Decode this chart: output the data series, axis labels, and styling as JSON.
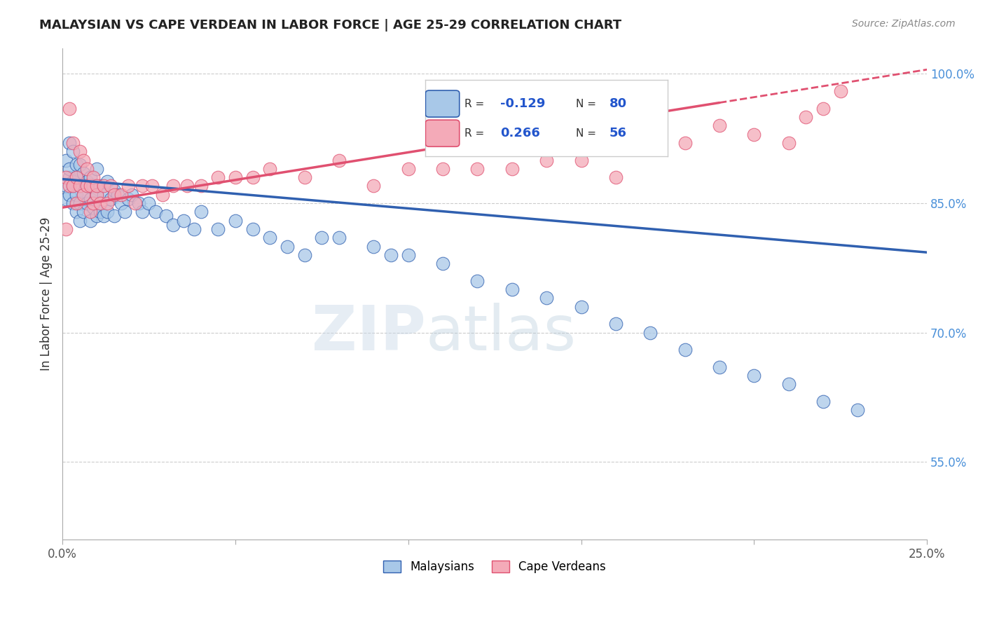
{
  "title": "MALAYSIAN VS CAPE VERDEAN IN LABOR FORCE | AGE 25-29 CORRELATION CHART",
  "source": "Source: ZipAtlas.com",
  "ylabel": "In Labor Force | Age 25-29",
  "xlim": [
    0.0,
    0.25
  ],
  "ylim": [
    0.46,
    1.03
  ],
  "ytick_positions": [
    0.55,
    0.7,
    0.85,
    1.0
  ],
  "ytick_labels": [
    "55.0%",
    "70.0%",
    "85.0%",
    "100.0%"
  ],
  "blue_color": "#a8c8e8",
  "pink_color": "#f4aab8",
  "blue_line_color": "#3060b0",
  "pink_line_color": "#e05070",
  "blue_R": -0.129,
  "blue_N": 80,
  "pink_R": 0.266,
  "pink_N": 56,
  "watermark_zip": "ZIP",
  "watermark_atlas": "atlas",
  "legend_label_blue": "Malaysians",
  "legend_label_pink": "Cape Verdeans",
  "blue_scatter_x": [
    0.001,
    0.001,
    0.001,
    0.002,
    0.002,
    0.002,
    0.002,
    0.003,
    0.003,
    0.003,
    0.003,
    0.004,
    0.004,
    0.004,
    0.004,
    0.005,
    0.005,
    0.005,
    0.005,
    0.006,
    0.006,
    0.006,
    0.007,
    0.007,
    0.007,
    0.008,
    0.008,
    0.008,
    0.009,
    0.009,
    0.01,
    0.01,
    0.01,
    0.011,
    0.011,
    0.012,
    0.012,
    0.013,
    0.013,
    0.014,
    0.015,
    0.015,
    0.016,
    0.017,
    0.018,
    0.019,
    0.02,
    0.022,
    0.023,
    0.025,
    0.027,
    0.03,
    0.032,
    0.035,
    0.038,
    0.04,
    0.045,
    0.05,
    0.055,
    0.06,
    0.065,
    0.07,
    0.075,
    0.08,
    0.09,
    0.095,
    0.1,
    0.11,
    0.12,
    0.13,
    0.14,
    0.15,
    0.16,
    0.17,
    0.18,
    0.19,
    0.2,
    0.21,
    0.22,
    0.23
  ],
  "blue_scatter_y": [
    0.87,
    0.9,
    0.855,
    0.88,
    0.92,
    0.86,
    0.89,
    0.91,
    0.875,
    0.85,
    0.87,
    0.895,
    0.86,
    0.84,
    0.88,
    0.895,
    0.87,
    0.85,
    0.83,
    0.885,
    0.86,
    0.84,
    0.875,
    0.85,
    0.87,
    0.88,
    0.855,
    0.83,
    0.87,
    0.845,
    0.89,
    0.86,
    0.835,
    0.87,
    0.84,
    0.86,
    0.835,
    0.875,
    0.84,
    0.855,
    0.865,
    0.835,
    0.86,
    0.85,
    0.84,
    0.855,
    0.86,
    0.85,
    0.84,
    0.85,
    0.84,
    0.835,
    0.825,
    0.83,
    0.82,
    0.84,
    0.82,
    0.83,
    0.82,
    0.81,
    0.8,
    0.79,
    0.81,
    0.81,
    0.8,
    0.79,
    0.79,
    0.78,
    0.76,
    0.75,
    0.74,
    0.73,
    0.71,
    0.7,
    0.68,
    0.66,
    0.65,
    0.64,
    0.62,
    0.61
  ],
  "pink_scatter_x": [
    0.001,
    0.001,
    0.002,
    0.002,
    0.003,
    0.003,
    0.004,
    0.004,
    0.005,
    0.005,
    0.006,
    0.006,
    0.007,
    0.007,
    0.008,
    0.008,
    0.009,
    0.009,
    0.01,
    0.01,
    0.011,
    0.012,
    0.013,
    0.014,
    0.015,
    0.017,
    0.019,
    0.021,
    0.023,
    0.026,
    0.029,
    0.032,
    0.036,
    0.04,
    0.045,
    0.05,
    0.055,
    0.06,
    0.07,
    0.08,
    0.09,
    0.1,
    0.11,
    0.12,
    0.13,
    0.14,
    0.15,
    0.16,
    0.17,
    0.18,
    0.19,
    0.2,
    0.21,
    0.215,
    0.22,
    0.225
  ],
  "pink_scatter_y": [
    0.82,
    0.88,
    0.96,
    0.87,
    0.87,
    0.92,
    0.88,
    0.85,
    0.91,
    0.87,
    0.86,
    0.9,
    0.87,
    0.89,
    0.87,
    0.84,
    0.88,
    0.85,
    0.86,
    0.87,
    0.85,
    0.87,
    0.85,
    0.87,
    0.86,
    0.86,
    0.87,
    0.85,
    0.87,
    0.87,
    0.86,
    0.87,
    0.87,
    0.87,
    0.88,
    0.88,
    0.88,
    0.89,
    0.88,
    0.9,
    0.87,
    0.89,
    0.89,
    0.89,
    0.89,
    0.9,
    0.9,
    0.88,
    0.92,
    0.92,
    0.94,
    0.93,
    0.92,
    0.95,
    0.96,
    0.98
  ],
  "blue_trend_x0": 0.0,
  "blue_trend_y0": 0.878,
  "blue_trend_x1": 0.25,
  "blue_trend_y1": 0.793,
  "pink_trend_x0": 0.0,
  "pink_trend_y0": 0.845,
  "pink_trend_x1": 0.25,
  "pink_trend_y1": 1.005
}
